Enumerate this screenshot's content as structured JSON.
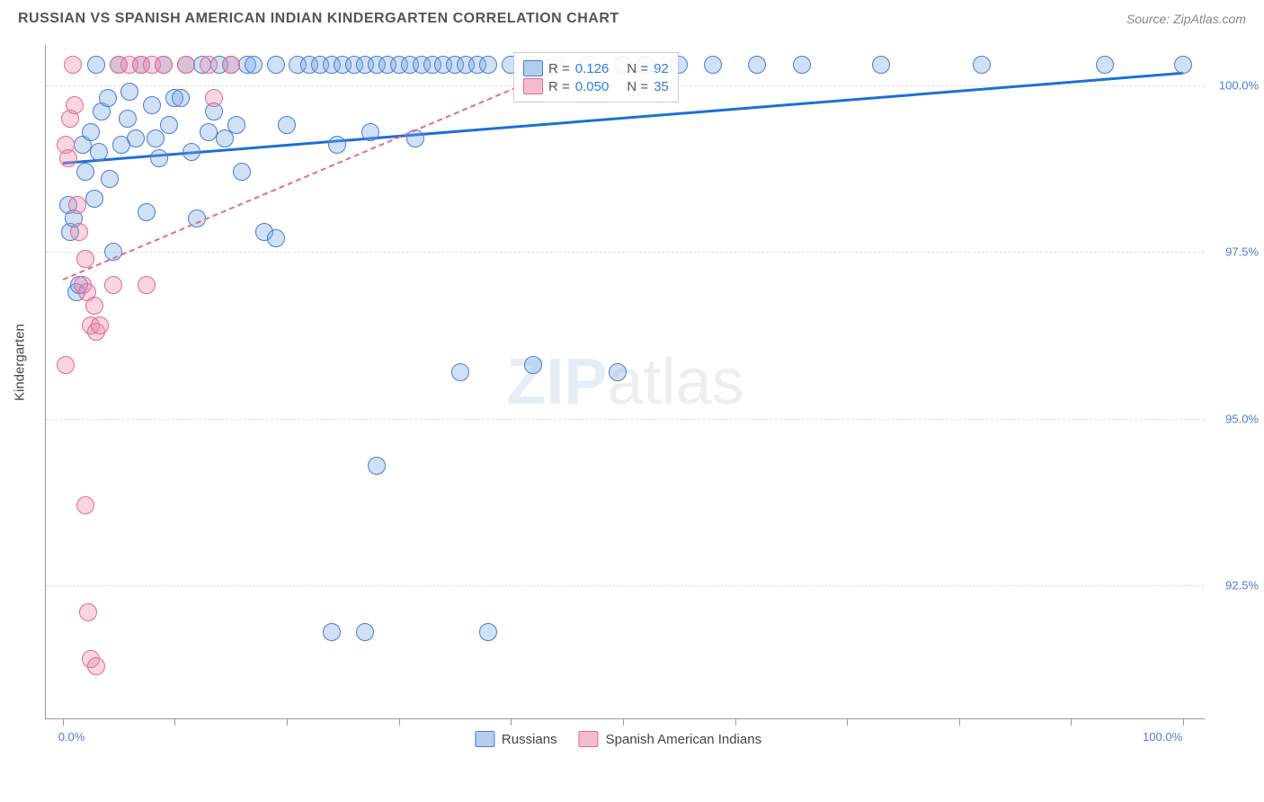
{
  "header": {
    "title": "RUSSIAN VS SPANISH AMERICAN INDIAN KINDERGARTEN CORRELATION CHART",
    "source_label": "Source: ZipAtlas.com"
  },
  "axes": {
    "y_title": "Kindergarten",
    "y_ticks": [
      {
        "v": 92.5,
        "label": "92.5%"
      },
      {
        "v": 95.0,
        "label": "95.0%"
      },
      {
        "v": 97.5,
        "label": "97.5%"
      },
      {
        "v": 100.0,
        "label": "100.0%"
      }
    ],
    "y_domain": [
      90.5,
      100.6
    ],
    "y_label_color": "#4b7dd1",
    "x_ticks_pos": [
      0,
      10,
      20,
      30,
      40,
      50,
      60,
      70,
      80,
      90,
      100
    ],
    "x_domain": [
      -1.5,
      102
    ],
    "x_left_label": "0.0%",
    "x_right_label": "100.0%",
    "x_label_color": "#4b7dd1"
  },
  "grid_color": "#dddddd",
  "plot": {
    "point_radius": 10,
    "point_stroke_width": 1,
    "series": [
      {
        "name": "Russians",
        "fill": "rgba(120,165,225,0.35)",
        "stroke": "#4b7dd1",
        "trend_color": "#1f6fd6",
        "trend_width": 3,
        "trend_dash": "solid",
        "trend": {
          "x1": 0,
          "y1": 98.85,
          "x2": 100,
          "y2": 100.2
        },
        "points": [
          [
            0.5,
            98.2
          ],
          [
            0.7,
            97.8
          ],
          [
            1.0,
            98.0
          ],
          [
            1.2,
            96.9
          ],
          [
            1.5,
            97.0
          ],
          [
            1.8,
            99.1
          ],
          [
            2.0,
            98.7
          ],
          [
            2.5,
            99.3
          ],
          [
            2.8,
            98.3
          ],
          [
            3.0,
            100.3
          ],
          [
            3.2,
            99.0
          ],
          [
            3.5,
            99.6
          ],
          [
            4.0,
            99.8
          ],
          [
            4.2,
            98.6
          ],
          [
            4.5,
            97.5
          ],
          [
            5.0,
            100.3
          ],
          [
            5.2,
            99.1
          ],
          [
            5.8,
            99.5
          ],
          [
            6.0,
            99.9
          ],
          [
            6.5,
            99.2
          ],
          [
            7.0,
            100.3
          ],
          [
            7.5,
            98.1
          ],
          [
            8.0,
            99.7
          ],
          [
            8.3,
            99.2
          ],
          [
            8.6,
            98.9
          ],
          [
            9.0,
            100.3
          ],
          [
            9.5,
            99.4
          ],
          [
            10.0,
            99.8
          ],
          [
            10.5,
            99.8
          ],
          [
            11.0,
            100.3
          ],
          [
            11.5,
            99.0
          ],
          [
            12.0,
            98.0
          ],
          [
            12.5,
            100.3
          ],
          [
            13.0,
            99.3
          ],
          [
            13.5,
            99.6
          ],
          [
            14.0,
            100.3
          ],
          [
            14.5,
            99.2
          ],
          [
            15.0,
            100.3
          ],
          [
            15.5,
            99.4
          ],
          [
            16.0,
            98.7
          ],
          [
            16.5,
            100.3
          ],
          [
            17.0,
            100.3
          ],
          [
            18.0,
            97.8
          ],
          [
            19.0,
            100.3
          ],
          [
            20.0,
            99.4
          ],
          [
            21.0,
            100.3
          ],
          [
            22.0,
            100.3
          ],
          [
            23.0,
            100.3
          ],
          [
            24.0,
            100.3
          ],
          [
            24.5,
            99.1
          ],
          [
            25.0,
            100.3
          ],
          [
            26.0,
            100.3
          ],
          [
            27.0,
            100.3
          ],
          [
            27.5,
            99.3
          ],
          [
            28.0,
            100.3
          ],
          [
            29.0,
            100.3
          ],
          [
            30.0,
            100.3
          ],
          [
            31.0,
            100.3
          ],
          [
            31.5,
            99.2
          ],
          [
            32.0,
            100.3
          ],
          [
            33.0,
            100.3
          ],
          [
            34.0,
            100.3
          ],
          [
            35.0,
            100.3
          ],
          [
            36.0,
            100.3
          ],
          [
            37.0,
            100.3
          ],
          [
            38.0,
            100.3
          ],
          [
            40.0,
            100.3
          ],
          [
            42.0,
            100.3
          ],
          [
            44.0,
            100.3
          ],
          [
            47.0,
            100.3
          ],
          [
            50.0,
            100.3
          ],
          [
            52.0,
            100.3
          ],
          [
            55.0,
            100.3
          ],
          [
            58.0,
            100.3
          ],
          [
            62.0,
            100.3
          ],
          [
            66.0,
            100.3
          ],
          [
            73.0,
            100.3
          ],
          [
            82.0,
            100.3
          ],
          [
            93.0,
            100.3
          ],
          [
            100.0,
            100.3
          ],
          [
            19.0,
            97.7
          ],
          [
            35.5,
            95.7
          ],
          [
            42.0,
            95.8
          ],
          [
            49.5,
            95.7
          ],
          [
            24.0,
            91.8
          ],
          [
            27.0,
            91.8
          ],
          [
            38.0,
            91.8
          ],
          [
            28.0,
            94.3
          ]
        ]
      },
      {
        "name": "Spanish American Indians",
        "fill": "rgba(235,135,165,0.35)",
        "stroke": "#e46a94",
        "trend_color": "#e46a94",
        "trend_width": 2,
        "trend_dash": "dashed",
        "trend": {
          "x1": 0,
          "y1": 97.1,
          "x2": 45,
          "y2": 100.3
        },
        "points": [
          [
            0.3,
            99.1
          ],
          [
            0.5,
            98.9
          ],
          [
            0.7,
            99.5
          ],
          [
            0.9,
            100.3
          ],
          [
            1.1,
            99.7
          ],
          [
            1.3,
            98.2
          ],
          [
            1.5,
            97.8
          ],
          [
            1.8,
            97.0
          ],
          [
            2.0,
            97.4
          ],
          [
            2.2,
            96.9
          ],
          [
            2.5,
            96.4
          ],
          [
            2.8,
            96.7
          ],
          [
            3.0,
            96.3
          ],
          [
            3.3,
            96.4
          ],
          [
            4.5,
            97.0
          ],
          [
            7.5,
            97.0
          ],
          [
            0.3,
            95.8
          ],
          [
            2.0,
            93.7
          ],
          [
            2.3,
            92.1
          ],
          [
            2.5,
            91.4
          ],
          [
            3.0,
            91.3
          ],
          [
            5.0,
            100.3
          ],
          [
            6.0,
            100.3
          ],
          [
            7.0,
            100.3
          ],
          [
            8.0,
            100.3
          ],
          [
            9.0,
            100.3
          ],
          [
            11.0,
            100.3
          ],
          [
            13.0,
            100.3
          ],
          [
            15.0,
            100.3
          ],
          [
            13.5,
            99.8
          ]
        ]
      }
    ]
  },
  "stats_box": {
    "rows": [
      {
        "swatch_fill": "rgba(120,165,225,0.55)",
        "swatch_stroke": "#4b7dd1",
        "r": "0.126",
        "n": "92"
      },
      {
        "swatch_fill": "rgba(235,135,165,0.55)",
        "swatch_stroke": "#e46a94",
        "r": "0.050",
        "n": "35"
      }
    ],
    "label_R": "R =",
    "label_N": "N =",
    "value_color": "#2f7ce0",
    "text_color": "#555"
  },
  "bottom_legend": {
    "items": [
      {
        "fill": "rgba(120,165,225,0.55)",
        "stroke": "#4b7dd1",
        "label": "Russians"
      },
      {
        "fill": "rgba(235,135,165,0.55)",
        "stroke": "#e46a94",
        "label": "Spanish American Indians"
      }
    ]
  },
  "watermark": {
    "part1": "ZIP",
    "part2": "atlas"
  }
}
